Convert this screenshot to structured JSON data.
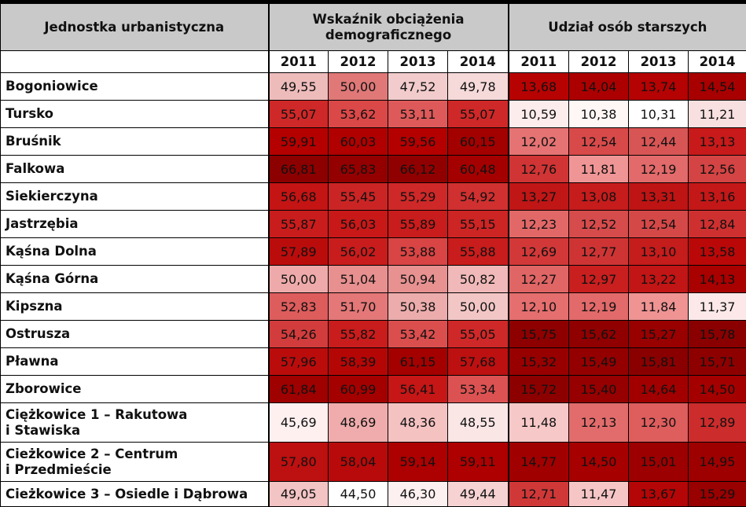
{
  "header": {
    "unit_label": "Jednostka urbanistyczna",
    "group1_label": "Wskaźnik obciążenia demograficznego",
    "group2_label": "Udział osób starszych"
  },
  "years": [
    "2011",
    "2012",
    "2013",
    "2014",
    "2011",
    "2012",
    "2013",
    "2014"
  ],
  "rows": [
    {
      "name": "Bogoniowice",
      "values": [
        "49,55",
        "50,00",
        "47,52",
        "49,78",
        "13,68",
        "14,04",
        "13,74",
        "14,54"
      ],
      "colors": [
        "#eebbbb",
        "#e07878",
        "#f2cccc",
        "#f6d9d9",
        "#b70202",
        "#ac0000",
        "#b50202",
        "#a80000"
      ]
    },
    {
      "name": "Tursko",
      "values": [
        "55,07",
        "53,62",
        "53,11",
        "55,07",
        "10,59",
        "10,38",
        "10,31",
        "11,21"
      ],
      "colors": [
        "#cf2828",
        "#db4848",
        "#de5a5a",
        "#cf2828",
        "#fcecec",
        "#fff6f6",
        "#ffffff",
        "#f9e0e0"
      ]
    },
    {
      "name": "Bruśnik",
      "values": [
        "59,91",
        "60,03",
        "59,56",
        "60,15"
      ],
      "colors": [
        "#b50000",
        "#b00000",
        "#b50000",
        "#a30000",
        "#e57373",
        "#d84a4a",
        "#d85555",
        "#c81a1a"
      ],
      "values2": [
        "12,02",
        "12,54",
        "12,44",
        "13,13"
      ]
    },
    {
      "name": "Falkowa",
      "values": [
        "66,81",
        "65,83",
        "66,12",
        "60,48",
        "12,76",
        "11,81",
        "12,19",
        "12,56"
      ],
      "colors": [
        "#8c0000",
        "#940000",
        "#910000",
        "#a50000",
        "#d03434",
        "#f09595",
        "#e26a6a",
        "#d44444"
      ]
    },
    {
      "name": "Siekierczyna",
      "values": [
        "56,68",
        "55,45",
        "55,29",
        "54,92",
        "13,27",
        "13,08",
        "13,31",
        "13,16"
      ],
      "colors": [
        "#c41414",
        "#cb2424",
        "#cf2828",
        "#d03030",
        "#c01616",
        "#c61c1c",
        "#bf1414",
        "#c41818"
      ]
    },
    {
      "name": "Jastrzębia",
      "values": [
        "55,87",
        "56,03",
        "55,89",
        "55,15",
        "12,23",
        "12,52",
        "12,54",
        "12,84"
      ],
      "colors": [
        "#c91c1c",
        "#c81818",
        "#c91c1c",
        "#cd2424",
        "#e26868",
        "#d64b4b",
        "#d54848",
        "#ce3030"
      ]
    },
    {
      "name": "Kąśna Dolna",
      "values": [
        "57,89",
        "56,02",
        "53,88",
        "55,88",
        "12,69",
        "12,77",
        "13,10",
        "13,58"
      ],
      "colors": [
        "#bb0c0c",
        "#c91c1c",
        "#d94444",
        "#c91c1c",
        "#d23838",
        "#cf3434",
        "#c51c1c",
        "#ba0808"
      ]
    },
    {
      "name": "Kąśna Górna",
      "values": [
        "50,00",
        "51,04",
        "50,94",
        "50,82",
        "12,27",
        "12,97",
        "13,22",
        "14,13"
      ],
      "colors": [
        "#eeaaaa",
        "#e88f8f",
        "#e79191",
        "#f0b8b8",
        "#e06565",
        "#c91f1f",
        "#c21515",
        "#a90000"
      ]
    },
    {
      "name": "Kipszna",
      "values": [
        "52,83",
        "51,70",
        "50,38",
        "50,00",
        "12,10",
        "12,19",
        "11,84",
        "11,37"
      ],
      "colors": [
        "#dd5c5c",
        "#e47777",
        "#ecacac",
        "#f3c6c6",
        "#e56e6e",
        "#e26a6a",
        "#ef9393",
        "#fce8e8"
      ]
    },
    {
      "name": "Ostrusza",
      "values": [
        "54,26",
        "55,82",
        "53,42",
        "55,05",
        "15,75",
        "15,62",
        "15,27",
        "15,78"
      ],
      "colors": [
        "#d23c3c",
        "#c91c1c",
        "#db4e4e",
        "#cf2828",
        "#8e0000",
        "#900000",
        "#990000",
        "#8a0000"
      ]
    },
    {
      "name": "Pławna",
      "values": [
        "57,96",
        "58,39",
        "61,15",
        "57,68",
        "15,32",
        "15,49",
        "15,81",
        "15,71"
      ],
      "colors": [
        "#bb0c0c",
        "#b50606",
        "#a40000",
        "#bd1010",
        "#980000",
        "#940000",
        "#8a0000",
        "#8e0000"
      ]
    },
    {
      "name": "Zborowice",
      "values": [
        "61,84",
        "60,99",
        "56,41",
        "53,34",
        "15,72",
        "15,40",
        "14,64",
        "14,50"
      ],
      "colors": [
        "#9f0000",
        "#a50000",
        "#c61616",
        "#dc5252",
        "#8d0000",
        "#960000",
        "#a20000",
        "#a50000"
      ]
    },
    {
      "name": "Ciężkowice 1 – Rakutowa i Stawiska",
      "values": [
        "45,69",
        "48,69",
        "48,36",
        "48,55",
        "11,48",
        "12,13",
        "12,30",
        "12,89"
      ],
      "colors": [
        "#fff0f0",
        "#f0acac",
        "#f5c2c2",
        "#fbe6e6",
        "#f7c8c8",
        "#e26c6c",
        "#de5d5d",
        "#cc2c2c"
      ]
    },
    {
      "name": "Cieżkowice 2 – Centrum i Przedmieście",
      "values": [
        "57,80",
        "58,04",
        "59,14",
        "59,11",
        "14,77",
        "14,50",
        "15,01",
        "14,95"
      ],
      "colors": [
        "#bd1010",
        "#b80a0a",
        "#ad0000",
        "#ae0000",
        "#a10000",
        "#a60000",
        "#9c0000",
        "#9e0000"
      ]
    },
    {
      "name": "Cieżkowice 3 – Osiedle i Dąbrowa",
      "values": [
        "49,05",
        "44,50",
        "46,30",
        "49,44",
        "12,71",
        "11,47",
        "13,67",
        "15,29"
      ],
      "colors": [
        "#f2c4c4",
        "#ffffff",
        "#fdf0f0",
        "#f6d2d2",
        "#d03838",
        "#f6c6c6",
        "#b40606",
        "#990000"
      ]
    }
  ]
}
